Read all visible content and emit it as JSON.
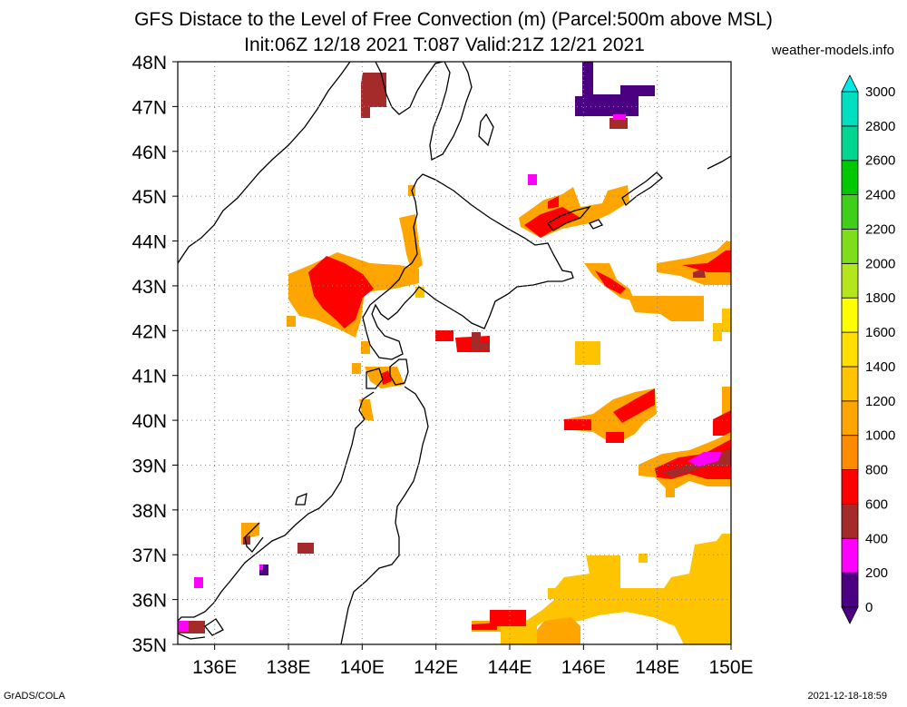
{
  "header": {
    "title_line1": "GFS Distace to the Level of Free Convection (m) (Parcel:500m above MSL)",
    "title_line2": "Init:06Z 12/18 2021 T:087 Valid:21Z 12/21 2021",
    "site": "weather-models.info"
  },
  "footer": {
    "software": "GrADS/COLA",
    "timestamp": "2021-12-18-18:59"
  },
  "map": {
    "lon_range": [
      135,
      150
    ],
    "lat_range": [
      35,
      48
    ],
    "lon_ticks": [
      "136E",
      "138E",
      "140E",
      "142E",
      "144E",
      "146E",
      "148E",
      "150E"
    ],
    "lat_ticks": [
      "35N",
      "36N",
      "37N",
      "38N",
      "39N",
      "40N",
      "41N",
      "42N",
      "43N",
      "44N",
      "45N",
      "46N",
      "47N",
      "48N"
    ]
  },
  "colorbar": {
    "labels": [
      "0",
      "200",
      "400",
      "600",
      "800",
      "1000",
      "1200",
      "1400",
      "1600",
      "1800",
      "2000",
      "2200",
      "2400",
      "2600",
      "2800",
      "3000"
    ],
    "colors": [
      "#4b0082",
      "#ff00ff",
      "#a52a2a",
      "#ff0000",
      "#ff8c00",
      "#ffa500",
      "#ffc400",
      "#ffde00",
      "#ffff00",
      "#b5e61d",
      "#7fdd1c",
      "#3fcf1a",
      "#00c800",
      "#00d68f",
      "#00e0c0",
      "#00eaea"
    ]
  }
}
